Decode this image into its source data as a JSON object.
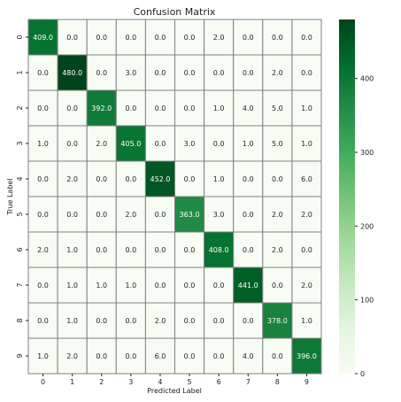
{
  "chart_data": {
    "type": "heatmap",
    "title": "Confusion Matrix",
    "xlabel": "Predicted Label",
    "ylabel": "True Label",
    "x_categories": [
      "0",
      "1",
      "2",
      "3",
      "4",
      "5",
      "6",
      "7",
      "8",
      "9"
    ],
    "y_categories": [
      "0",
      "1",
      "2",
      "3",
      "4",
      "5",
      "6",
      "7",
      "8",
      "9"
    ],
    "values": [
      [
        409,
        0,
        0,
        0,
        0,
        0,
        2,
        0,
        0,
        0
      ],
      [
        0,
        480,
        0,
        3,
        0,
        0,
        0,
        0,
        2,
        0
      ],
      [
        0,
        0,
        392,
        0,
        0,
        0,
        1,
        4,
        5,
        1
      ],
      [
        1,
        0,
        2,
        405,
        0,
        3,
        0,
        1,
        5,
        1
      ],
      [
        0,
        2,
        0,
        0,
        452,
        0,
        1,
        0,
        0,
        6
      ],
      [
        0,
        0,
        0,
        2,
        0,
        363,
        3,
        0,
        2,
        2
      ],
      [
        2,
        1,
        0,
        0,
        0,
        0,
        408,
        0,
        2,
        0
      ],
      [
        0,
        1,
        1,
        1,
        0,
        0,
        0,
        441,
        0,
        2
      ],
      [
        0,
        1,
        0,
        0,
        2,
        0,
        0,
        0,
        378,
        1
      ],
      [
        1,
        2,
        0,
        0,
        6,
        0,
        0,
        4,
        0,
        396
      ]
    ],
    "value_format": "0.0",
    "colormap": "Greens",
    "colorbar": {
      "min": 0,
      "max": 480,
      "ticks": [
        0,
        100,
        200,
        300,
        400
      ]
    },
    "grid": true
  }
}
